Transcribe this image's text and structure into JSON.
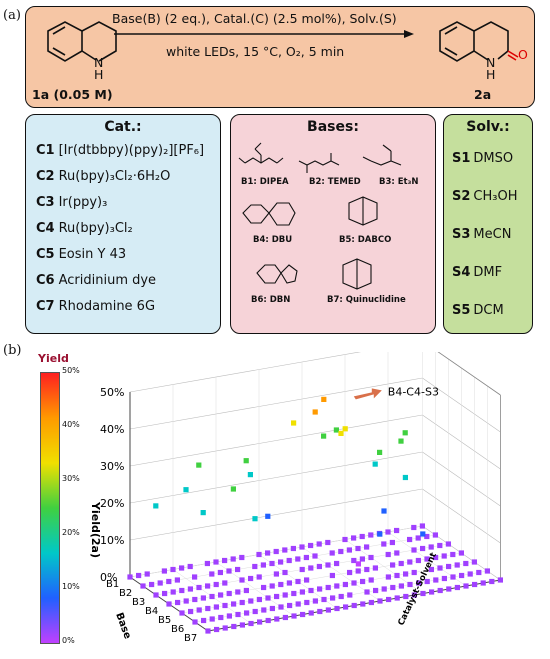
{
  "panel_a": {
    "letter": "(a)",
    "reaction": {
      "conditions_top": "Base(B) (2 eq.), Catal.(C) (2.5 mol%), Solv.(S)",
      "conditions_bottom": "white LEDs, 15 °C, O₂, 5 min",
      "reactant_label": "1a (0.05 M)",
      "product_label": "2a",
      "nh": "N",
      "h": "H",
      "oxygen": "O"
    },
    "catalysts": {
      "title": "Cat.:",
      "items": [
        {
          "id": "C1",
          "name": "[Ir(dtbbpy)(ppy)₂][PF₆]"
        },
        {
          "id": "C2",
          "name": "Ru(bpy)₃Cl₂·6H₂O"
        },
        {
          "id": "C3",
          "name": "Ir(ppy)₃"
        },
        {
          "id": "C4",
          "name": "Ru(bpy)₃Cl₂"
        },
        {
          "id": "C5",
          "name": "Eosin Y 43"
        },
        {
          "id": "C6",
          "name": "Acridinium dye"
        },
        {
          "id": "C7",
          "name": "Rhodamine 6G"
        }
      ]
    },
    "bases": {
      "title": "Bases:",
      "items": [
        {
          "label": "B1: DIPEA"
        },
        {
          "label": "B2: TEMED"
        },
        {
          "label": "B3: Et₃N"
        },
        {
          "label": "B4: DBU"
        },
        {
          "label": "B5: DABCO"
        },
        {
          "label": "B6: DBN"
        },
        {
          "label": "B7: Quinuclidine"
        }
      ]
    },
    "solvents": {
      "title": "Solv.:",
      "items": [
        {
          "id": "S1",
          "name": "DMSO"
        },
        {
          "id": "S2",
          "name": "CH₃OH"
        },
        {
          "id": "S3",
          "name": "MeCN"
        },
        {
          "id": "S4",
          "name": "DMF"
        },
        {
          "id": "S5",
          "name": "DCM"
        }
      ]
    }
  },
  "panel_b": {
    "letter": "(b)",
    "colorbar": {
      "title": "Yield",
      "ticks": [
        "50%",
        "40%",
        "30%",
        "20%",
        "10%",
        "0%"
      ],
      "colors": [
        "#ff2020",
        "#ff9a00",
        "#f0e000",
        "#40d040",
        "#00c8c8",
        "#2060ff",
        "#c040ff"
      ]
    },
    "annotation": "B4-C4-S3",
    "marker_color": "#a040ff",
    "arrow_color": "#d9704a"
  },
  "chart_data": {
    "type": "scatter",
    "zlabel": "Yield(2a)",
    "xlabel": "Base",
    "ylabel": "Catalyst-Solvent",
    "z_ticks": [
      "0%",
      "10%",
      "20%",
      "30%",
      "40%",
      "50%"
    ],
    "x_categories": [
      "B1",
      "B2",
      "B3",
      "B4",
      "B5",
      "B6",
      "B7"
    ],
    "zlim": [
      0,
      50
    ],
    "highlight": {
      "base": "B4",
      "catalyst_solvent": "C4-S3",
      "yield": 48
    },
    "points_above_zero": [
      {
        "base": "B4",
        "cs": 18,
        "yield": 48
      },
      {
        "base": "B4",
        "cs": 17,
        "yield": 45
      },
      {
        "base": "B3",
        "cs": 16,
        "yield": 40
      },
      {
        "base": "B4",
        "cs": 20,
        "yield": 38
      },
      {
        "base": "B3",
        "cs": 22,
        "yield": 36
      },
      {
        "base": "B2",
        "cs": 21,
        "yield": 32
      },
      {
        "base": "B1",
        "cs": 24,
        "yield": 30
      },
      {
        "base": "B2",
        "cs": 12,
        "yield": 29
      },
      {
        "base": "B3",
        "cs": 26,
        "yield": 28
      },
      {
        "base": "B1",
        "cs": 8,
        "yield": 27
      },
      {
        "base": "B2",
        "cs": 30,
        "yield": 27
      },
      {
        "base": "B1",
        "cs": 32,
        "yield": 26
      },
      {
        "base": "B3",
        "cs": 9,
        "yield": 25
      },
      {
        "base": "B2",
        "cs": 5,
        "yield": 24
      },
      {
        "base": "B1",
        "cs": 14,
        "yield": 22
      },
      {
        "base": "B2",
        "cs": 27,
        "yield": 22
      },
      {
        "base": "B3",
        "cs": 29,
        "yield": 20
      },
      {
        "base": "B4",
        "cs": 10,
        "yield": 19
      },
      {
        "base": "B1",
        "cs": 3,
        "yield": 18
      },
      {
        "base": "B2",
        "cs": 7,
        "yield": 17
      },
      {
        "base": "B3",
        "cs": 13,
        "yield": 16
      },
      {
        "base": "B4",
        "cs": 25,
        "yield": 15
      },
      {
        "base": "B5",
        "cs": 23,
        "yield": 12
      },
      {
        "base": "B5",
        "cs": 28,
        "yield": 10
      },
      {
        "base": "B6",
        "cs": 19,
        "yield": 8
      }
    ]
  }
}
